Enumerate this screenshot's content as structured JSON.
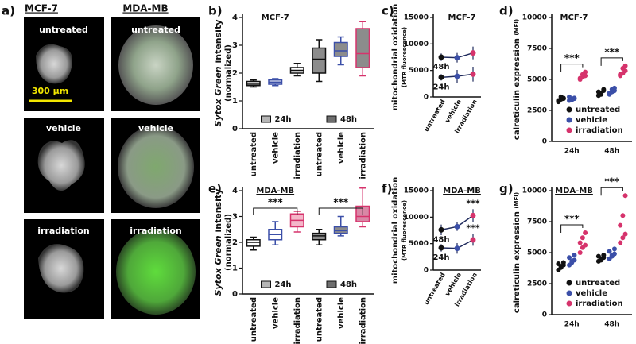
{
  "panel_a": {
    "label": "a)",
    "columns": [
      "MCF-7",
      "MDA-MB"
    ],
    "rows": [
      "untreated",
      "vehicle",
      "irradiation"
    ],
    "scale_bar": "300 µm"
  },
  "chart_data": [
    {
      "type": "box",
      "label": "b)",
      "title": "MCF-7",
      "ylabel_italic": "Sytox Green",
      "ylabel": "intensity",
      "ylabel2": "(normalized)",
      "categories": [
        "untreated",
        "vehicle",
        "irradiation",
        "untreated",
        "vehicle",
        "irradiation"
      ],
      "ylim": [
        0,
        4
      ],
      "yticks": [
        0,
        1,
        2,
        3,
        4
      ],
      "legend": [
        {
          "name": "24h",
          "color": "#b5b5b5"
        },
        {
          "name": "48h",
          "color": "#6e6e6e"
        }
      ],
      "boxes": [
        {
          "min": 1.5,
          "q1": 1.55,
          "median": 1.6,
          "q3": 1.7,
          "max": 1.75,
          "stroke": "#111111",
          "fill": "#ffffff"
        },
        {
          "min": 1.55,
          "q1": 1.6,
          "median": 1.68,
          "q3": 1.75,
          "max": 1.8,
          "stroke": "#3b4fa8",
          "fill": "#ffffff"
        },
        {
          "min": 1.9,
          "q1": 2.0,
          "median": 2.1,
          "q3": 2.2,
          "max": 2.35,
          "stroke": "#111111",
          "fill": "#ffffff"
        },
        {
          "min": 1.7,
          "q1": 2.0,
          "median": 2.5,
          "q3": 2.9,
          "max": 3.2,
          "stroke": "#111111",
          "fill": "#8c8c8c"
        },
        {
          "min": 2.3,
          "q1": 2.6,
          "median": 2.8,
          "q3": 3.1,
          "max": 3.3,
          "stroke": "#3b4fa8",
          "fill": "#8c8c8c"
        },
        {
          "min": 1.9,
          "q1": 2.2,
          "median": 2.7,
          "q3": 3.6,
          "max": 3.85,
          "stroke": "#d6336c",
          "fill": "#8c8c8c"
        }
      ]
    },
    {
      "type": "line",
      "label": "c)",
      "title": "MCF-7",
      "ylabel": "mitochondrial  oxidation",
      "ylabel2": "(MTR fluorescence)",
      "categories": [
        "untreated",
        "vehicle",
        "irradiation"
      ],
      "ylim": [
        0,
        15000
      ],
      "yticks": [
        0,
        5000,
        10000,
        15000
      ],
      "point_colors": [
        "#111111",
        "#3b4fa8",
        "#d6336c"
      ],
      "series": [
        {
          "name": "48h",
          "color": "#1f2a5c",
          "values": [
            7500,
            7400,
            8300
          ],
          "errors": [
            700,
            900,
            1200
          ]
        },
        {
          "name": "24h",
          "color": "#1f2a5c",
          "values": [
            3700,
            3900,
            4300
          ],
          "errors": [
            600,
            1200,
            1400
          ]
        }
      ]
    },
    {
      "type": "dot",
      "label": "d)",
      "title": "MCF-7",
      "ylabel": "calreticulin expression",
      "ylabel2": "(MFI)",
      "categories": [
        "24h",
        "48h"
      ],
      "ylim": [
        0,
        10000
      ],
      "yticks": [
        0,
        2500,
        5000,
        7500,
        10000
      ],
      "series": [
        {
          "name": "untreated",
          "color": "#111111",
          "values": [
            [
              3200,
              3400,
              3500,
              3300,
              3600,
              3450
            ],
            [
              3700,
              3900,
              4100,
              4000,
              3800,
              4200
            ]
          ]
        },
        {
          "name": "vehicle",
          "color": "#3b4fa8",
          "values": [
            [
              3300,
              3400,
              3500,
              3600,
              3350,
              3450
            ],
            [
              3800,
              4000,
              4100,
              3900,
              4200,
              4300
            ]
          ]
        },
        {
          "name": "irradiation",
          "color": "#d6336c",
          "values": [
            [
              5000,
              5200,
              5300,
              5100,
              5400,
              5600
            ],
            [
              5300,
              5500,
              5700,
              5400,
              5900,
              6100
            ]
          ]
        }
      ],
      "annotations": [
        "***",
        "***"
      ]
    },
    {
      "type": "box",
      "label": "e)",
      "title": "MDA-MB",
      "ylabel_italic": "Sytox Green",
      "ylabel": "intensity",
      "ylabel2": "(normalized)",
      "categories": [
        "untreated",
        "vehicle",
        "irradiation",
        "untreated",
        "vehicle",
        "irradiation"
      ],
      "ylim": [
        0,
        4
      ],
      "yticks": [
        0,
        1,
        2,
        3,
        4
      ],
      "legend": [
        {
          "name": "24h",
          "color": "#b5b5b5"
        },
        {
          "name": "48h",
          "color": "#6e6e6e"
        }
      ],
      "boxes": [
        {
          "min": 1.7,
          "q1": 1.85,
          "median": 2.0,
          "q3": 2.1,
          "max": 2.2,
          "stroke": "#111111",
          "fill": "#ffffff"
        },
        {
          "min": 1.9,
          "q1": 2.1,
          "median": 2.3,
          "q3": 2.5,
          "max": 2.8,
          "stroke": "#3b4fa8",
          "fill": "#ffffff"
        },
        {
          "min": 2.4,
          "q1": 2.6,
          "median": 2.85,
          "q3": 3.1,
          "max": 3.2,
          "stroke": "#d6336c",
          "fill": "#f4b6c9"
        },
        {
          "min": 1.9,
          "q1": 2.1,
          "median": 2.25,
          "q3": 2.35,
          "max": 2.5,
          "stroke": "#111111",
          "fill": "#8c8c8c"
        },
        {
          "min": 2.25,
          "q1": 2.35,
          "median": 2.45,
          "q3": 2.6,
          "max": 3.0,
          "stroke": "#3b4fa8",
          "fill": "#8c8c8c"
        },
        {
          "min": 2.6,
          "q1": 2.8,
          "median": 3.0,
          "q3": 3.4,
          "max": 4.1,
          "stroke": "#d6336c",
          "fill": "#d987a6"
        }
      ],
      "annotations": [
        "***",
        "***"
      ]
    },
    {
      "type": "line",
      "label": "f)",
      "title": "MDA-MB",
      "ylabel": "mitochondrial  oxidation",
      "ylabel2": "(MTR fluorescence)",
      "categories": [
        "untreated",
        "vehicle",
        "irradiation"
      ],
      "ylim": [
        0,
        15000
      ],
      "yticks": [
        0,
        5000,
        10000,
        15000
      ],
      "point_colors": [
        "#111111",
        "#3b4fa8",
        "#d6336c"
      ],
      "series": [
        {
          "name": "48h",
          "color": "#1f2a5c",
          "values": [
            7600,
            8200,
            10300
          ],
          "errors": [
            1000,
            800,
            1200
          ]
        },
        {
          "name": "24h",
          "color": "#1f2a5c",
          "values": [
            4200,
            4100,
            5700
          ],
          "errors": [
            700,
            1000,
            1100
          ]
        }
      ],
      "annotations": [
        "***",
        "***"
      ]
    },
    {
      "type": "dot",
      "label": "g)",
      "title": "MDA-MB",
      "ylabel": "calreticulin expression",
      "ylabel2": "(MFI)",
      "categories": [
        "24h",
        "48h"
      ],
      "ylim": [
        0,
        10000
      ],
      "yticks": [
        0,
        2500,
        5000,
        7500,
        10000
      ],
      "series": [
        {
          "name": "untreated",
          "color": "#111111",
          "values": [
            [
              3600,
              3800,
              4000,
              4100,
              3900,
              4200
            ],
            [
              4300,
              4500,
              4600,
              4700,
              4400,
              4800
            ]
          ]
        },
        {
          "name": "vehicle",
          "color": "#3b4fa8",
          "values": [
            [
              4000,
              4200,
              4400,
              4600,
              4300,
              4800
            ],
            [
              4500,
              4700,
              4900,
              5100,
              4800,
              5300
            ]
          ]
        },
        {
          "name": "irradiation",
          "color": "#d6336c",
          "values": [
            [
              5000,
              5400,
              5600,
              5800,
              6200,
              6600
            ],
            [
              5800,
              6200,
              6500,
              7200,
              8000,
              9600
            ]
          ]
        }
      ],
      "annotations": [
        "***",
        "***"
      ]
    }
  ]
}
